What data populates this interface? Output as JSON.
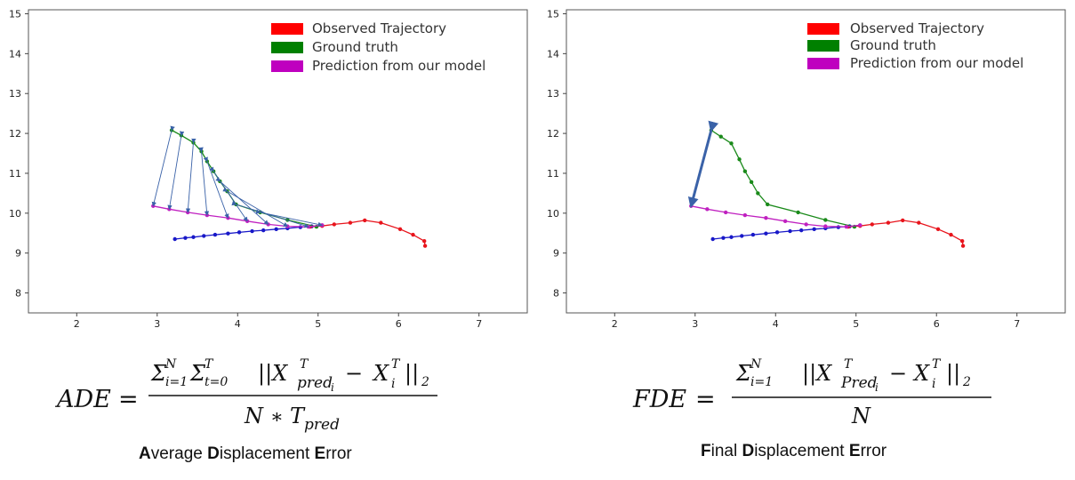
{
  "colors": {
    "observed": "#e8141c",
    "ground_truth": "#1a8a1a",
    "prediction": "#c020c0",
    "blue_track": "#1818c8",
    "arrow": "#3a62a8",
    "legend_observed": "#ff0000",
    "legend_ground_truth": "#008000",
    "legend_prediction": "#bf00bf"
  },
  "chart_data": [
    {
      "type": "line",
      "legend": [
        "Observed Trajectory",
        "Ground truth",
        "Prediction from our model"
      ],
      "legend_position": "top-right",
      "xlim": [
        1.4,
        7.6
      ],
      "ylim": [
        7.5,
        15.1
      ],
      "xticks": [
        "2",
        "3",
        "4",
        "5",
        "6",
        "7"
      ],
      "yticks": [
        "8",
        "9",
        "10",
        "11",
        "12",
        "13",
        "14",
        "15"
      ],
      "grid": false,
      "series": [
        {
          "key": "blue_track",
          "points": [
            [
              3.22,
              9.35
            ],
            [
              3.35,
              9.38
            ],
            [
              3.45,
              9.4
            ],
            [
              3.58,
              9.43
            ],
            [
              3.72,
              9.46
            ],
            [
              3.88,
              9.49
            ],
            [
              4.02,
              9.52
            ],
            [
              4.18,
              9.55
            ],
            [
              4.32,
              9.57
            ],
            [
              4.48,
              9.6
            ],
            [
              4.62,
              9.62
            ],
            [
              4.78,
              9.65
            ],
            [
              4.92,
              9.67
            ],
            [
              5.05,
              9.69
            ]
          ]
        },
        {
          "key": "observed",
          "points": [
            [
              6.33,
              9.18
            ],
            [
              6.32,
              9.3
            ],
            [
              6.18,
              9.46
            ],
            [
              6.02,
              9.6
            ],
            [
              5.78,
              9.76
            ],
            [
              5.58,
              9.82
            ],
            [
              5.4,
              9.76
            ],
            [
              5.2,
              9.72
            ],
            [
              5.05,
              9.68
            ],
            [
              4.9,
              9.66
            ]
          ]
        },
        {
          "key": "ground_truth",
          "points": [
            [
              3.18,
              12.08
            ],
            [
              3.3,
              11.95
            ],
            [
              3.45,
              11.77
            ],
            [
              3.55,
              11.55
            ],
            [
              3.62,
              11.3
            ],
            [
              3.7,
              11.05
            ],
            [
              3.78,
              10.8
            ],
            [
              3.87,
              10.55
            ],
            [
              3.98,
              10.22
            ],
            [
              4.28,
              10.02
            ],
            [
              4.62,
              9.83
            ],
            [
              4.98,
              9.66
            ]
          ]
        },
        {
          "key": "prediction",
          "points": [
            [
              2.95,
              10.18
            ],
            [
              3.15,
              10.1
            ],
            [
              3.38,
              10.02
            ],
            [
              3.62,
              9.95
            ],
            [
              3.88,
              9.88
            ],
            [
              4.12,
              9.8
            ],
            [
              4.38,
              9.72
            ],
            [
              4.62,
              9.67
            ],
            [
              4.88,
              9.66
            ],
            [
              5.05,
              9.7
            ]
          ]
        }
      ],
      "displacement_arrows": [
        [
          [
            3.18,
            12.08
          ],
          [
            2.95,
            10.18
          ]
        ],
        [
          [
            3.3,
            11.95
          ],
          [
            3.15,
            10.1
          ]
        ],
        [
          [
            3.45,
            11.77
          ],
          [
            3.38,
            10.02
          ]
        ],
        [
          [
            3.55,
            11.55
          ],
          [
            3.62,
            9.95
          ]
        ],
        [
          [
            3.62,
            11.3
          ],
          [
            3.88,
            9.88
          ]
        ],
        [
          [
            3.7,
            11.05
          ],
          [
            4.12,
            9.8
          ]
        ],
        [
          [
            3.78,
            10.8
          ],
          [
            4.38,
            9.72
          ]
        ],
        [
          [
            3.87,
            10.55
          ],
          [
            4.62,
            9.67
          ]
        ],
        [
          [
            3.98,
            10.22
          ],
          [
            4.88,
            9.66
          ]
        ],
        [
          [
            4.28,
            10.02
          ],
          [
            5.05,
            9.7
          ]
        ]
      ]
    },
    {
      "type": "line",
      "legend": [
        "Observed Trajectory",
        "Ground truth",
        "Prediction from our model"
      ],
      "legend_position": "top-right",
      "xlim": [
        1.4,
        7.6
      ],
      "ylim": [
        7.5,
        15.1
      ],
      "xticks": [
        "2",
        "3",
        "4",
        "5",
        "6",
        "7"
      ],
      "yticks": [
        "8",
        "9",
        "10",
        "11",
        "12",
        "13",
        "14",
        "15"
      ],
      "grid": false,
      "series": [
        {
          "key": "blue_track",
          "points": [
            [
              3.22,
              9.35
            ],
            [
              3.35,
              9.38
            ],
            [
              3.45,
              9.4
            ],
            [
              3.58,
              9.43
            ],
            [
              3.72,
              9.46
            ],
            [
              3.88,
              9.49
            ],
            [
              4.02,
              9.52
            ],
            [
              4.18,
              9.55
            ],
            [
              4.32,
              9.57
            ],
            [
              4.48,
              9.6
            ],
            [
              4.62,
              9.62
            ],
            [
              4.78,
              9.65
            ],
            [
              4.92,
              9.67
            ],
            [
              5.05,
              9.69
            ]
          ]
        },
        {
          "key": "observed",
          "points": [
            [
              6.33,
              9.18
            ],
            [
              6.32,
              9.3
            ],
            [
              6.18,
              9.46
            ],
            [
              6.02,
              9.6
            ],
            [
              5.78,
              9.76
            ],
            [
              5.58,
              9.82
            ],
            [
              5.4,
              9.76
            ],
            [
              5.2,
              9.72
            ],
            [
              5.05,
              9.68
            ],
            [
              4.9,
              9.66
            ]
          ]
        },
        {
          "key": "ground_truth",
          "points": [
            [
              3.2,
              12.08
            ],
            [
              3.32,
              11.92
            ],
            [
              3.45,
              11.75
            ],
            [
              3.55,
              11.35
            ],
            [
              3.62,
              11.05
            ],
            [
              3.7,
              10.78
            ],
            [
              3.78,
              10.5
            ],
            [
              3.9,
              10.22
            ],
            [
              4.28,
              10.02
            ],
            [
              4.62,
              9.83
            ],
            [
              4.98,
              9.66
            ]
          ]
        },
        {
          "key": "prediction",
          "points": [
            [
              2.95,
              10.18
            ],
            [
              3.15,
              10.1
            ],
            [
              3.38,
              10.02
            ],
            [
              3.62,
              9.95
            ],
            [
              3.88,
              9.88
            ],
            [
              4.12,
              9.8
            ],
            [
              4.38,
              9.72
            ],
            [
              4.62,
              9.67
            ],
            [
              4.88,
              9.66
            ],
            [
              5.05,
              9.7
            ]
          ]
        }
      ],
      "displacement_arrows": [
        [
          [
            3.2,
            12.08
          ],
          [
            2.95,
            10.18
          ]
        ]
      ]
    }
  ],
  "formulas": {
    "ade": {
      "lhs": "ADE",
      "eq": "=",
      "numerator": {
        "sum1": "Σ",
        "sum1_sup": "N",
        "sum1_sub": "i=1",
        "sum2": "Σ",
        "sum2_sup": "T",
        "sum2_sub": "t=0",
        "norm_open": "||X",
        "x1_sup": "T",
        "x1_sub": "pred",
        "x1_sub2": "i",
        "minus": "−",
        "x2": "X",
        "x2_sup": "T",
        "x2_sub": "i",
        "norm_close": "||",
        "norm_sub": "2"
      },
      "denominator": {
        "n": "N",
        "times": "∗",
        "t": "T",
        "t_sub": "pred"
      }
    },
    "fde": {
      "lhs": "FDE",
      "eq": "=",
      "numerator": {
        "sum1": "Σ",
        "sum1_sup": "N",
        "sum1_sub": "i=1",
        "norm_open": "||X",
        "x1_sup": "T",
        "x1_sub": "Pred",
        "x1_sub2": "i",
        "minus": "−",
        "x2": "X",
        "x2_sup": "T",
        "x2_sub": "i",
        "norm_close": "||",
        "norm_sub": "2"
      },
      "denominator": {
        "n": "N"
      }
    }
  },
  "captions": {
    "ade": {
      "a": "A",
      "a_rest": "verage ",
      "d": "D",
      "d_rest": "isplacement ",
      "e": "E",
      "e_rest": "rror"
    },
    "fde": {
      "f": "F",
      "f_rest": "inal ",
      "d": "D",
      "d_rest": "isplacement ",
      "e": "E",
      "e_rest": "rror"
    }
  }
}
